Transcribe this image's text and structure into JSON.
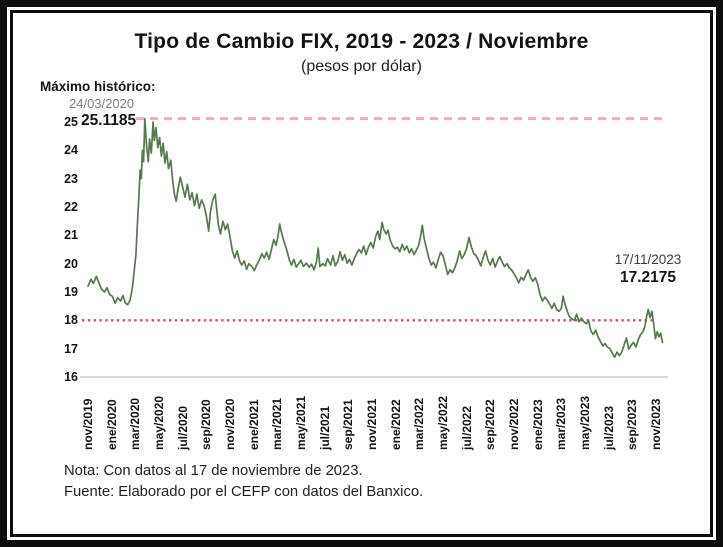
{
  "header": {
    "title": "Tipo de Cambio FIX, 2019 - 2023 / Noviembre",
    "subtitle": "(pesos por dólar)"
  },
  "annotations": {
    "max_label": "Máximo histórico:",
    "max_date": "24/03/2020",
    "max_value": "25.1185",
    "last_date": "17/11/2023",
    "last_value": "17.2175"
  },
  "notes": {
    "line1": "Nota: Con datos al 17 de noviembre de 2023.",
    "line2": "Fuente: Elaborado por el CEFP con datos del Banxico."
  },
  "colors": {
    "series": "#557a4d",
    "max_line": "#e9b0b7",
    "level18_line": "#c5546a",
    "axis_line": "#c9c9c9",
    "frame": "#0d0d0d",
    "muted_text": "#7f7f7f"
  },
  "chart_data": {
    "type": "line",
    "title": "Tipo de Cambio FIX, 2019 - 2023 / Noviembre",
    "subtitle": "(pesos por dólar)",
    "ylabel": "pesos por dólar",
    "xlabel": "",
    "grid": false,
    "legend": "none",
    "ylim": [
      16,
      25.5
    ],
    "x_unit": "months since nov/2019",
    "xlim_months": [
      0,
      48.6
    ],
    "y_ticks": [
      25,
      24,
      23,
      22,
      21,
      20,
      19,
      18,
      17,
      16
    ],
    "x_tick_labels": [
      "nov/2019",
      "ene/2020",
      "mar/2020",
      "may/2020",
      "jul/2020",
      "sep/2020",
      "nov/2020",
      "ene/2021",
      "mar/2021",
      "may/2021",
      "jul/2021",
      "sep/2021",
      "nov/2021",
      "ene/2022",
      "mar/2022",
      "may/2022",
      "jul/2022",
      "sep/2022",
      "nov/2022",
      "ene/2023",
      "mar/2023",
      "may/2023",
      "jul/2023",
      "sep/2023",
      "nov/2023"
    ],
    "reference_lines": [
      {
        "name": "maximo-historico",
        "value": 25.1185,
        "style": "dashed",
        "color": "#e9b0b7"
      },
      {
        "name": "nivel-18",
        "value": 18,
        "style": "dotted",
        "color": "#c5546a"
      }
    ],
    "key_points": [
      {
        "date": "24/03/2020",
        "value": 25.1185
      },
      {
        "date": "17/11/2023",
        "value": 17.2175
      }
    ],
    "series": [
      {
        "name": "Tipo de cambio FIX",
        "color": "#557a4d",
        "points": [
          [
            0.0,
            19.2
          ],
          [
            0.25,
            19.45
          ],
          [
            0.45,
            19.3
          ],
          [
            0.7,
            19.55
          ],
          [
            0.95,
            19.3
          ],
          [
            1.15,
            19.1
          ],
          [
            1.4,
            19.0
          ],
          [
            1.6,
            19.15
          ],
          [
            1.85,
            18.9
          ],
          [
            2.05,
            18.85
          ],
          [
            2.3,
            18.6
          ],
          [
            2.5,
            18.8
          ],
          [
            2.75,
            18.68
          ],
          [
            2.95,
            18.88
          ],
          [
            3.15,
            18.62
          ],
          [
            3.35,
            18.55
          ],
          [
            3.55,
            18.7
          ],
          [
            3.75,
            19.15
          ],
          [
            3.9,
            19.75
          ],
          [
            4.05,
            20.3
          ],
          [
            4.15,
            21.2
          ],
          [
            4.3,
            22.4
          ],
          [
            4.4,
            23.3
          ],
          [
            4.5,
            23.0
          ],
          [
            4.6,
            24.0
          ],
          [
            4.7,
            23.6
          ],
          [
            4.8,
            25.1185
          ],
          [
            4.95,
            24.15
          ],
          [
            5.1,
            23.6
          ],
          [
            5.2,
            24.4
          ],
          [
            5.35,
            23.9
          ],
          [
            5.5,
            25.0
          ],
          [
            5.6,
            24.35
          ],
          [
            5.75,
            24.8
          ],
          [
            5.9,
            24.1
          ],
          [
            6.05,
            24.45
          ],
          [
            6.2,
            23.8
          ],
          [
            6.35,
            24.25
          ],
          [
            6.5,
            23.55
          ],
          [
            6.65,
            23.95
          ],
          [
            6.8,
            23.35
          ],
          [
            7.0,
            23.65
          ],
          [
            7.15,
            22.95
          ],
          [
            7.3,
            22.45
          ],
          [
            7.45,
            22.2
          ],
          [
            7.6,
            22.6
          ],
          [
            7.8,
            23.05
          ],
          [
            8.0,
            22.7
          ],
          [
            8.2,
            22.35
          ],
          [
            8.4,
            22.8
          ],
          [
            8.6,
            22.25
          ],
          [
            8.8,
            22.5
          ],
          [
            9.0,
            22.05
          ],
          [
            9.2,
            22.45
          ],
          [
            9.4,
            21.95
          ],
          [
            9.6,
            22.25
          ],
          [
            9.8,
            22.05
          ],
          [
            10.0,
            21.7
          ],
          [
            10.2,
            21.15
          ],
          [
            10.35,
            21.85
          ],
          [
            10.55,
            22.25
          ],
          [
            10.75,
            22.45
          ],
          [
            11.0,
            21.4
          ],
          [
            11.2,
            21.05
          ],
          [
            11.4,
            21.5
          ],
          [
            11.6,
            21.2
          ],
          [
            11.8,
            21.4
          ],
          [
            12.0,
            20.95
          ],
          [
            12.2,
            20.45
          ],
          [
            12.4,
            20.2
          ],
          [
            12.6,
            20.45
          ],
          [
            12.8,
            20.1
          ],
          [
            13.0,
            19.95
          ],
          [
            13.2,
            20.1
          ],
          [
            13.4,
            19.8
          ],
          [
            13.6,
            20.0
          ],
          [
            13.85,
            19.9
          ],
          [
            14.05,
            19.75
          ],
          [
            14.25,
            19.95
          ],
          [
            14.5,
            20.15
          ],
          [
            14.7,
            20.35
          ],
          [
            14.9,
            20.2
          ],
          [
            15.1,
            20.4
          ],
          [
            15.3,
            20.15
          ],
          [
            15.5,
            20.5
          ],
          [
            15.7,
            20.85
          ],
          [
            15.9,
            20.65
          ],
          [
            16.05,
            20.95
          ],
          [
            16.2,
            21.4
          ],
          [
            16.35,
            21.1
          ],
          [
            16.55,
            20.8
          ],
          [
            16.75,
            20.55
          ],
          [
            17.0,
            20.15
          ],
          [
            17.2,
            19.95
          ],
          [
            17.4,
            20.15
          ],
          [
            17.6,
            19.88
          ],
          [
            17.8,
            20.0
          ],
          [
            18.0,
            20.12
          ],
          [
            18.2,
            19.9
          ],
          [
            18.45,
            20.02
          ],
          [
            18.7,
            19.88
          ],
          [
            18.9,
            19.98
          ],
          [
            19.1,
            19.78
          ],
          [
            19.3,
            20.05
          ],
          [
            19.45,
            20.55
          ],
          [
            19.6,
            19.9
          ],
          [
            19.85,
            20.0
          ],
          [
            20.05,
            19.92
          ],
          [
            20.25,
            20.18
          ],
          [
            20.5,
            19.95
          ],
          [
            20.7,
            20.28
          ],
          [
            20.9,
            19.92
          ],
          [
            21.1,
            20.08
          ],
          [
            21.3,
            20.42
          ],
          [
            21.5,
            20.12
          ],
          [
            21.7,
            20.32
          ],
          [
            21.9,
            20.02
          ],
          [
            22.1,
            20.15
          ],
          [
            22.3,
            19.95
          ],
          [
            22.5,
            20.18
          ],
          [
            22.7,
            20.35
          ],
          [
            22.9,
            20.5
          ],
          [
            23.1,
            20.38
          ],
          [
            23.3,
            20.62
          ],
          [
            23.5,
            20.32
          ],
          [
            23.7,
            20.58
          ],
          [
            23.9,
            20.75
          ],
          [
            24.1,
            20.55
          ],
          [
            24.3,
            20.95
          ],
          [
            24.5,
            21.15
          ],
          [
            24.65,
            20.85
          ],
          [
            24.85,
            21.46
          ],
          [
            25.0,
            21.2
          ],
          [
            25.2,
            21.05
          ],
          [
            25.35,
            21.18
          ],
          [
            25.55,
            20.82
          ],
          [
            25.75,
            20.62
          ],
          [
            25.95,
            20.52
          ],
          [
            26.15,
            20.58
          ],
          [
            26.35,
            20.42
          ],
          [
            26.55,
            20.68
          ],
          [
            26.75,
            20.48
          ],
          [
            26.95,
            20.62
          ],
          [
            27.15,
            20.38
          ],
          [
            27.35,
            20.52
          ],
          [
            27.55,
            20.32
          ],
          [
            27.75,
            20.48
          ],
          [
            27.95,
            20.65
          ],
          [
            28.1,
            20.95
          ],
          [
            28.25,
            21.35
          ],
          [
            28.4,
            20.9
          ],
          [
            28.6,
            20.55
          ],
          [
            28.8,
            20.2
          ],
          [
            29.0,
            19.95
          ],
          [
            29.2,
            20.05
          ],
          [
            29.4,
            19.85
          ],
          [
            29.6,
            20.15
          ],
          [
            29.8,
            20.4
          ],
          [
            30.0,
            20.28
          ],
          [
            30.2,
            19.95
          ],
          [
            30.4,
            19.62
          ],
          [
            30.6,
            19.78
          ],
          [
            30.8,
            19.68
          ],
          [
            31.0,
            19.85
          ],
          [
            31.2,
            20.1
          ],
          [
            31.4,
            20.45
          ],
          [
            31.6,
            20.18
          ],
          [
            31.8,
            20.32
          ],
          [
            32.0,
            20.55
          ],
          [
            32.2,
            20.92
          ],
          [
            32.4,
            20.58
          ],
          [
            32.6,
            20.35
          ],
          [
            32.8,
            20.28
          ],
          [
            33.0,
            20.12
          ],
          [
            33.2,
            19.92
          ],
          [
            33.4,
            20.22
          ],
          [
            33.6,
            20.45
          ],
          [
            33.8,
            20.12
          ],
          [
            34.0,
            19.95
          ],
          [
            34.2,
            20.18
          ],
          [
            34.4,
            19.88
          ],
          [
            34.6,
            20.08
          ],
          [
            34.8,
            20.25
          ],
          [
            35.0,
            20.05
          ],
          [
            35.2,
            19.9
          ],
          [
            35.4,
            20.0
          ],
          [
            35.6,
            19.85
          ],
          [
            35.8,
            19.78
          ],
          [
            36.0,
            19.65
          ],
          [
            36.2,
            19.5
          ],
          [
            36.4,
            19.32
          ],
          [
            36.6,
            19.52
          ],
          [
            36.8,
            19.42
          ],
          [
            37.0,
            19.6
          ],
          [
            37.2,
            19.78
          ],
          [
            37.4,
            19.52
          ],
          [
            37.6,
            19.38
          ],
          [
            37.8,
            19.5
          ],
          [
            38.0,
            19.28
          ],
          [
            38.2,
            18.92
          ],
          [
            38.4,
            18.68
          ],
          [
            38.6,
            18.82
          ],
          [
            38.8,
            18.72
          ],
          [
            39.0,
            18.58
          ],
          [
            39.2,
            18.42
          ],
          [
            39.4,
            18.6
          ],
          [
            39.6,
            18.38
          ],
          [
            39.8,
            18.32
          ],
          [
            40.0,
            18.42
          ],
          [
            40.15,
            18.85
          ],
          [
            40.3,
            18.58
          ],
          [
            40.5,
            18.32
          ],
          [
            40.7,
            18.12
          ],
          [
            40.9,
            18.05
          ],
          [
            41.1,
            18.0
          ],
          [
            41.3,
            18.22
          ],
          [
            41.5,
            17.95
          ],
          [
            41.7,
            18.08
          ],
          [
            41.9,
            17.95
          ],
          [
            42.1,
            17.88
          ],
          [
            42.3,
            17.98
          ],
          [
            42.5,
            17.62
          ],
          [
            42.7,
            17.5
          ],
          [
            42.9,
            17.65
          ],
          [
            43.1,
            17.42
          ],
          [
            43.3,
            17.26
          ],
          [
            43.5,
            17.1
          ],
          [
            43.7,
            17.18
          ],
          [
            43.9,
            17.05
          ],
          [
            44.1,
            17.0
          ],
          [
            44.3,
            16.85
          ],
          [
            44.5,
            16.7
          ],
          [
            44.7,
            16.88
          ],
          [
            44.9,
            16.75
          ],
          [
            45.1,
            16.88
          ],
          [
            45.3,
            17.12
          ],
          [
            45.5,
            17.38
          ],
          [
            45.7,
            16.98
          ],
          [
            45.9,
            17.12
          ],
          [
            46.1,
            17.22
          ],
          [
            46.3,
            17.06
          ],
          [
            46.5,
            17.32
          ],
          [
            46.7,
            17.5
          ],
          [
            46.9,
            17.6
          ],
          [
            47.05,
            17.78
          ],
          [
            47.2,
            18.12
          ],
          [
            47.35,
            18.38
          ],
          [
            47.5,
            18.1
          ],
          [
            47.65,
            18.32
          ],
          [
            47.8,
            17.9
          ],
          [
            47.95,
            17.35
          ],
          [
            48.1,
            17.6
          ],
          [
            48.25,
            17.42
          ],
          [
            48.4,
            17.55
          ],
          [
            48.55,
            17.2175
          ]
        ]
      }
    ]
  }
}
